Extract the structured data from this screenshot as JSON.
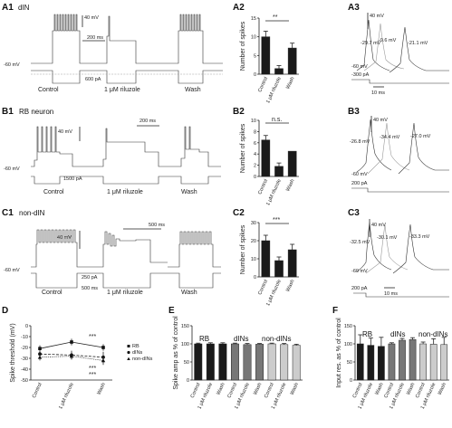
{
  "panels": {
    "A1": {
      "label": "A1",
      "title": "dIN",
      "scale_v": "40 mV",
      "scale_t": "200 ms",
      "baseline": "-60 mV",
      "current": "600 pA",
      "conditions": [
        "Control",
        "1 μM riluzole",
        "Wash"
      ]
    },
    "A2": {
      "label": "A2",
      "sig": "**"
    },
    "A3": {
      "label": "A3",
      "scale_v": "40 mV",
      "v1": "-29.7 mV",
      "v2": "-9.6 mV",
      "v3": "-21.1 mV",
      "baseline": "-60 mV",
      "current": "-300 pA",
      "scale_t": "10 ms"
    },
    "B1": {
      "label": "B1",
      "title": "RB neuron",
      "scale_t": "200 ms",
      "scale_v": "40 mV",
      "baseline": "-60 mV",
      "current": "1500 pA",
      "conditions": [
        "Control",
        "1 μM riluzole",
        "Wash"
      ]
    },
    "B2": {
      "label": "B2",
      "sig": "n.s."
    },
    "B3": {
      "label": "B3",
      "scale_v": "40 mV",
      "v1": "-26.8 mV",
      "v2": "-34.4 mV",
      "v3": "-27.0 mV",
      "baseline": "-60 mV",
      "current": "200 pA"
    },
    "C1": {
      "label": "C1",
      "title": "non-dIN",
      "scale_t": "500 ms",
      "scale_v": "40 mV",
      "baseline": "-60 mV",
      "current": "250 pA",
      "scale_t2": "500 ms",
      "conditions": [
        "Control",
        "1 μM riluzole",
        "Wash"
      ]
    },
    "C2": {
      "label": "C2",
      "sig": "***"
    },
    "C3": {
      "label": "C3",
      "scale_v": "40 mV",
      "v1": "-32.5 mV",
      "v2": "-30.1 mV",
      "v3": "-33.3 mV",
      "baseline": "-60 mV",
      "current": "200 pA",
      "scale_t": "10 ms"
    },
    "D": {
      "label": "D",
      "sig1": "***",
      "sig2": "***",
      "sig3": "***"
    },
    "E": {
      "label": "E",
      "g1": "RB",
      "g2": "dINs",
      "g3": "non-dINs"
    },
    "F": {
      "label": "F",
      "g1": "RB",
      "g2": "dINs",
      "g3": "non-dINs"
    }
  },
  "chart_data": [
    {
      "id": "A2",
      "type": "bar",
      "ylabel": "Number of spikes",
      "categories": [
        "Control",
        "1 μM riluzole",
        "Wash"
      ],
      "values": [
        10,
        1.5,
        7
      ],
      "errors": [
        1.5,
        0.8,
        1.3
      ],
      "ylim": [
        0,
        15
      ],
      "yticks": [
        "0",
        "5",
        "10",
        "15"
      ]
    },
    {
      "id": "B2",
      "type": "bar",
      "ylabel": "Number of spikes",
      "categories": [
        "Control",
        "1 μM riluzole",
        "Wash"
      ],
      "values": [
        6.5,
        1.8,
        4.5
      ],
      "errors": [
        0.8,
        0.6,
        0
      ],
      "ylim": [
        0,
        10
      ],
      "yticks": [
        "0",
        "2",
        "4",
        "6",
        "8",
        "10"
      ]
    },
    {
      "id": "C2",
      "type": "bar",
      "ylabel": "Number of spikes",
      "categories": [
        "Control",
        "1 μM riluzole",
        "Wash"
      ],
      "values": [
        20,
        9,
        15
      ],
      "errors": [
        3,
        2,
        3
      ],
      "ylim": [
        0,
        30
      ],
      "yticks": [
        "0",
        "10",
        "20",
        "30"
      ]
    },
    {
      "id": "D",
      "type": "line",
      "ylabel": "Spike threshold (mV)",
      "categories": [
        "Control",
        "1 μM riluzole",
        "Wash"
      ],
      "ylim": [
        -50,
        0
      ],
      "yticks": [
        "-50",
        "-40",
        "-30",
        "-20",
        "-10",
        "0"
      ],
      "series": [
        {
          "name": "RB",
          "values": [
            -21,
            -15,
            -20
          ],
          "errors": [
            3,
            3,
            3
          ]
        },
        {
          "name": "dINs",
          "values": [
            -26,
            -27,
            -29
          ],
          "errors": [
            3,
            4,
            5
          ]
        },
        {
          "name": "non-dINs",
          "values": [
            -29,
            -28,
            -32
          ],
          "errors": [
            3,
            3,
            4
          ]
        }
      ]
    },
    {
      "id": "E",
      "type": "bar",
      "ylabel": "Spike amp as % of control",
      "categories": [
        "Control",
        "1 μM riluzole",
        "Wash",
        "Control",
        "1 μM riluzole",
        "Wash",
        "Control",
        "1 μM riluzole",
        "Wash"
      ],
      "values": [
        100,
        100,
        100,
        100,
        98,
        99,
        100,
        98,
        96
      ],
      "errors": [
        2,
        3,
        3,
        2,
        3,
        2,
        2,
        3,
        3
      ],
      "ylim": [
        0,
        150
      ],
      "yticks": [
        "0",
        "50",
        "100",
        "150"
      ]
    },
    {
      "id": "F",
      "type": "bar",
      "ylabel": "Input res. as % of control",
      "categories": [
        "Control",
        "1 μM riluzole",
        "Wash",
        "Control",
        "1 μM riluzole",
        "Wash",
        "Control",
        "1 μM riluzole",
        "Wash"
      ],
      "values": [
        100,
        96,
        93,
        100,
        110,
        112,
        100,
        99,
        98
      ],
      "errors": [
        25,
        20,
        25,
        3,
        5,
        5,
        5,
        15,
        20
      ],
      "ylim": [
        0,
        150
      ],
      "yticks": [
        "0",
        "50",
        "100",
        "150"
      ]
    }
  ]
}
